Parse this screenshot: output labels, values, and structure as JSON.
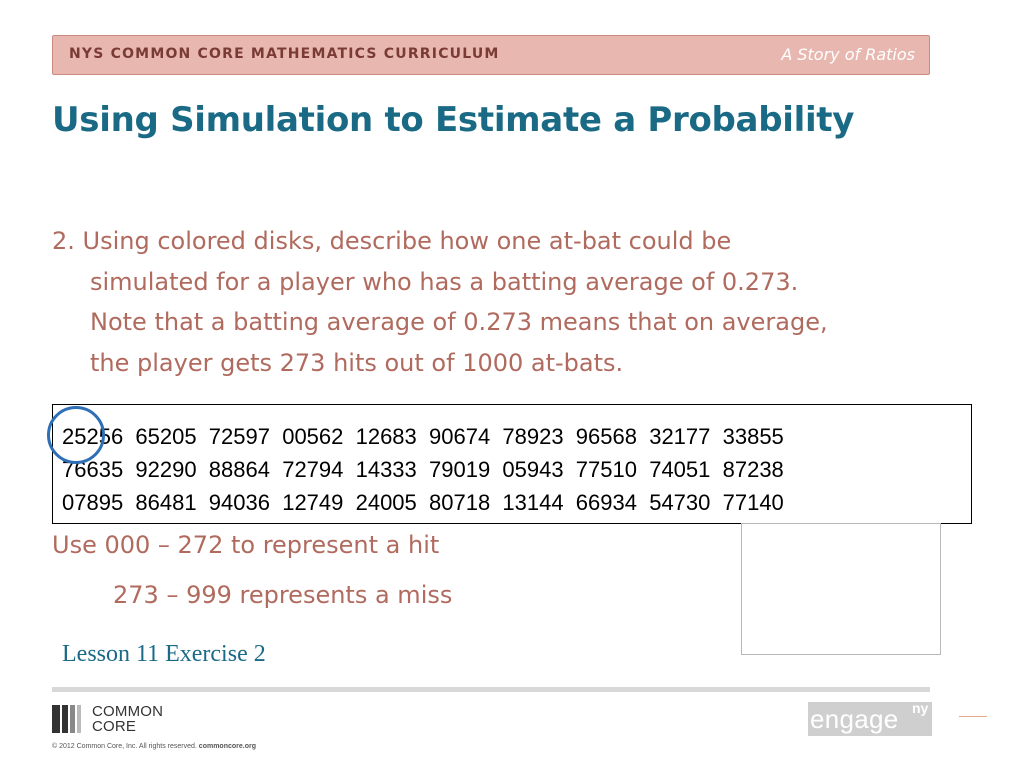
{
  "header": {
    "curriculum": "NYS COMMON CORE MATHEMATICS CURRICULUM",
    "story": "A Story of Ratios"
  },
  "title": "Using Simulation to Estimate a Probability",
  "question": {
    "lines": [
      "2. Using colored disks, describe how one at-bat could be",
      "simulated for a player who has a batting average of 0.273.",
      "Note that a batting average of 0.273 means that on average,",
      "the player gets 273 hits out of 1000 at-bats."
    ]
  },
  "random_numbers": {
    "rows": [
      "25256  65205  72597  00562  12683  90674  78923  96568  32177  33855",
      "76635  92290  88864  72794  14333  79019  05943  77510  74051  87238",
      "07895  86481  94036  12749  24005  80718  13144  66934  54730  77140"
    ]
  },
  "rules": {
    "hit": "Use 000 – 272 to represent a hit",
    "miss": "273 – 999 represents a miss"
  },
  "lesson_label": "Lesson 11 Exercise 2",
  "footer": {
    "common_core_line1": "COMMON",
    "common_core_line2": "CORE",
    "copyright_text": "© 2012 Common Core, Inc. All rights reserved.",
    "copyright_link": "commoncore.org",
    "engage_word": "engage",
    "engage_sup": "ny"
  },
  "colors": {
    "title": "#1a6a86",
    "body_text": "#b06a5e",
    "header_bar": "#e8b8b0",
    "circle": "#2e6fb5"
  },
  "icons": {
    "logo": "common-core-logo",
    "engage": "engageny-logo"
  }
}
